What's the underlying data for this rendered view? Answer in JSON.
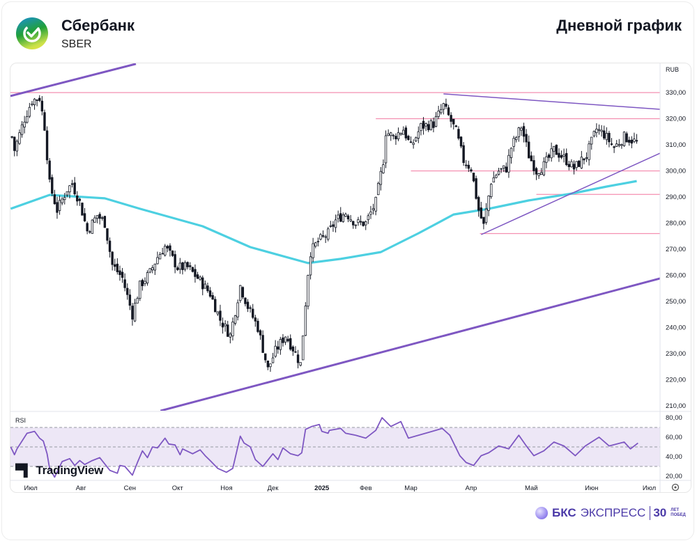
{
  "header": {
    "company": "Сбербанк",
    "ticker": "SBER",
    "chart_type_label": "Дневной график"
  },
  "footer": {
    "tradingview": "TradingView",
    "bks_bold": "БКС",
    "bks_light": "ЭКСПРЕСС",
    "bks_30": "30",
    "bks_small1": "ЛЕТ",
    "bks_small2": "ПОБЕД"
  },
  "colors": {
    "candle": "#131722",
    "ma": "#4dd0e1",
    "level": "#f48fb1",
    "trend": "#7e57c2",
    "rsi": "#7e57c2",
    "rsi_band": "#ede7f6"
  },
  "chart_data": {
    "type": "candlestick",
    "currency": "RUB",
    "y_ticks": [
      210,
      220,
      230,
      240,
      250,
      260,
      270,
      280,
      290,
      300,
      310,
      320,
      330
    ],
    "ylim": [
      207,
      345
    ],
    "x_ticks": [
      {
        "label": "Июл",
        "day": 7.5
      },
      {
        "label": "Авг",
        "day": 27.5
      },
      {
        "label": "Сен",
        "day": 47
      },
      {
        "label": "Окт",
        "day": 66
      },
      {
        "label": "Ноя",
        "day": 85.5
      },
      {
        "label": "Дек",
        "day": 104
      },
      {
        "label": "2025",
        "day": 123.5,
        "bold": true
      },
      {
        "label": "Фев",
        "day": 141
      },
      {
        "label": "Мар",
        "day": 159
      },
      {
        "label": "Апр",
        "day": 183
      },
      {
        "label": "Май",
        "day": 207
      },
      {
        "label": "Июн",
        "day": 231
      },
      {
        "label": "Июл",
        "day": 254
      }
    ],
    "xlim": [
      -0.6,
      258.3
    ],
    "approx_close": [
      [
        0,
        313
      ],
      [
        1,
        308
      ],
      [
        5,
        320
      ],
      [
        8,
        327
      ],
      [
        11,
        328
      ],
      [
        13,
        317
      ],
      [
        15,
        295
      ],
      [
        18,
        285
      ],
      [
        22,
        293
      ],
      [
        24,
        295
      ],
      [
        27,
        288
      ],
      [
        30,
        277
      ],
      [
        34,
        283
      ],
      [
        37,
        280
      ],
      [
        40,
        264
      ],
      [
        44,
        259
      ],
      [
        48,
        245
      ],
      [
        51,
        256
      ],
      [
        55,
        261
      ],
      [
        58,
        267
      ],
      [
        61,
        271
      ],
      [
        63,
        268
      ],
      [
        66,
        263
      ],
      [
        70,
        263
      ],
      [
        74,
        259
      ],
      [
        79,
        253
      ],
      [
        83,
        243
      ],
      [
        87,
        237
      ],
      [
        91,
        256
      ],
      [
        94,
        248
      ],
      [
        98,
        240
      ],
      [
        102,
        224
      ],
      [
        105,
        231
      ],
      [
        109,
        237
      ],
      [
        112,
        232
      ],
      [
        115,
        226
      ],
      [
        118,
        261
      ],
      [
        119,
        269
      ],
      [
        122,
        273
      ],
      [
        126,
        276
      ],
      [
        129,
        281
      ],
      [
        133,
        284
      ],
      [
        137,
        280
      ],
      [
        141,
        280
      ],
      [
        145,
        288
      ],
      [
        148,
        304
      ],
      [
        149,
        315
      ],
      [
        152,
        313
      ],
      [
        156,
        316
      ],
      [
        159,
        309
      ],
      [
        163,
        317
      ],
      [
        168,
        318
      ],
      [
        172,
        325
      ],
      [
        174,
        321
      ],
      [
        177,
        315
      ],
      [
        180,
        304
      ],
      [
        183,
        301
      ],
      [
        186,
        285
      ],
      [
        188,
        279
      ],
      [
        191,
        296
      ],
      [
        194,
        300
      ],
      [
        197,
        301
      ],
      [
        199,
        309
      ],
      [
        203,
        317
      ],
      [
        206,
        306
      ],
      [
        209,
        300
      ],
      [
        212,
        302
      ],
      [
        216,
        308
      ],
      [
        220,
        305
      ],
      [
        224,
        301
      ],
      [
        229,
        306
      ],
      [
        233,
        316
      ],
      [
        236,
        314
      ],
      [
        240,
        309
      ],
      [
        244,
        313
      ],
      [
        249,
        311
      ]
    ],
    "moving_average": [
      [
        -0.5,
        285.5
      ],
      [
        15,
        290.8
      ],
      [
        37,
        289.5
      ],
      [
        51,
        285.5
      ],
      [
        76,
        278.8
      ],
      [
        95,
        270.8
      ],
      [
        118,
        264.7
      ],
      [
        131,
        266.3
      ],
      [
        147,
        268.9
      ],
      [
        162,
        276.1
      ],
      [
        176,
        283.3
      ],
      [
        190,
        285.5
      ],
      [
        206,
        288.7
      ],
      [
        223,
        291.3
      ],
      [
        237,
        294
      ],
      [
        249,
        296.1
      ]
    ],
    "horizontal_levels": [
      {
        "price": 330,
        "from_day": -0.6
      },
      {
        "price": 320,
        "from_day": 145
      },
      {
        "price": 300,
        "from_day": 159
      },
      {
        "price": 291,
        "from_day": 209
      },
      {
        "price": 276,
        "from_day": 186.5
      }
    ],
    "trend_lines": [
      {
        "from": [
          -0.6,
          328.7
        ],
        "to": [
          49.4,
          341
        ],
        "weight": "thick"
      },
      {
        "from": [
          59.2,
          208.1
        ],
        "to": [
          258.3,
          258.8
        ],
        "weight": "thick"
      },
      {
        "from": [
          172,
          329.5
        ],
        "to": [
          258.3,
          323.6
        ],
        "weight": "thin"
      },
      {
        "from": [
          187,
          275.6
        ],
        "to": [
          258.3,
          306.8
        ],
        "weight": "thin"
      }
    ],
    "rsi": {
      "label": "RSI",
      "y_ticks": [
        20,
        40,
        60,
        80
      ],
      "ylim": [
        15,
        83
      ],
      "band": [
        30,
        70
      ],
      "values": [
        [
          -0.5,
          50
        ],
        [
          1,
          42
        ],
        [
          2,
          48
        ],
        [
          6,
          64
        ],
        [
          9,
          66
        ],
        [
          11,
          59
        ],
        [
          12.5,
          56
        ],
        [
          14,
          43
        ],
        [
          15,
          28
        ],
        [
          17,
          19
        ],
        [
          20,
          35
        ],
        [
          23,
          38
        ],
        [
          25,
          31
        ],
        [
          27,
          36
        ],
        [
          29,
          32
        ],
        [
          32,
          36
        ],
        [
          35,
          39
        ],
        [
          39,
          26
        ],
        [
          42,
          23
        ],
        [
          43,
          31
        ],
        [
          45,
          30
        ],
        [
          48,
          21
        ],
        [
          50,
          34
        ],
        [
          52,
          46
        ],
        [
          54,
          39
        ],
        [
          56,
          50
        ],
        [
          58,
          49
        ],
        [
          61,
          59
        ],
        [
          62.5,
          53
        ],
        [
          65,
          52
        ],
        [
          67,
          42
        ],
        [
          68,
          48
        ],
        [
          72,
          43
        ],
        [
          75,
          47
        ],
        [
          77,
          41
        ],
        [
          79,
          36
        ],
        [
          82,
          28
        ],
        [
          85.5,
          24
        ],
        [
          88,
          28
        ],
        [
          90,
          50
        ],
        [
          91,
          61
        ],
        [
          92.5,
          54
        ],
        [
          95,
          50
        ],
        [
          97,
          37
        ],
        [
          100,
          30
        ],
        [
          104,
          43
        ],
        [
          106,
          37
        ],
        [
          108,
          49
        ],
        [
          111,
          43
        ],
        [
          114,
          41
        ],
        [
          115.5,
          44
        ],
        [
          117,
          68
        ],
        [
          119.5,
          71
        ],
        [
          122.5,
          73
        ],
        [
          123.5,
          66
        ],
        [
          126,
          64
        ],
        [
          126.5,
          67
        ],
        [
          131,
          69
        ],
        [
          133,
          64
        ],
        [
          137,
          62
        ],
        [
          141,
          59
        ],
        [
          145,
          67
        ],
        [
          147.5,
          80
        ],
        [
          151,
          71
        ],
        [
          155,
          76
        ],
        [
          158,
          59
        ],
        [
          162,
          62
        ],
        [
          167.5,
          66
        ],
        [
          171.5,
          69
        ],
        [
          174.5,
          62
        ],
        [
          178.5,
          41
        ],
        [
          181,
          34
        ],
        [
          184,
          31
        ],
        [
          187,
          41
        ],
        [
          190,
          44
        ],
        [
          194,
          51
        ],
        [
          198,
          48
        ],
        [
          202,
          62
        ],
        [
          205,
          51
        ],
        [
          208,
          41
        ],
        [
          212,
          46
        ],
        [
          216,
          55
        ],
        [
          220,
          51
        ],
        [
          224.5,
          41
        ],
        [
          228.5,
          51
        ],
        [
          234,
          60
        ],
        [
          238,
          51
        ],
        [
          244,
          55
        ],
        [
          246.5,
          48
        ],
        [
          249.5,
          54
        ]
      ]
    }
  }
}
